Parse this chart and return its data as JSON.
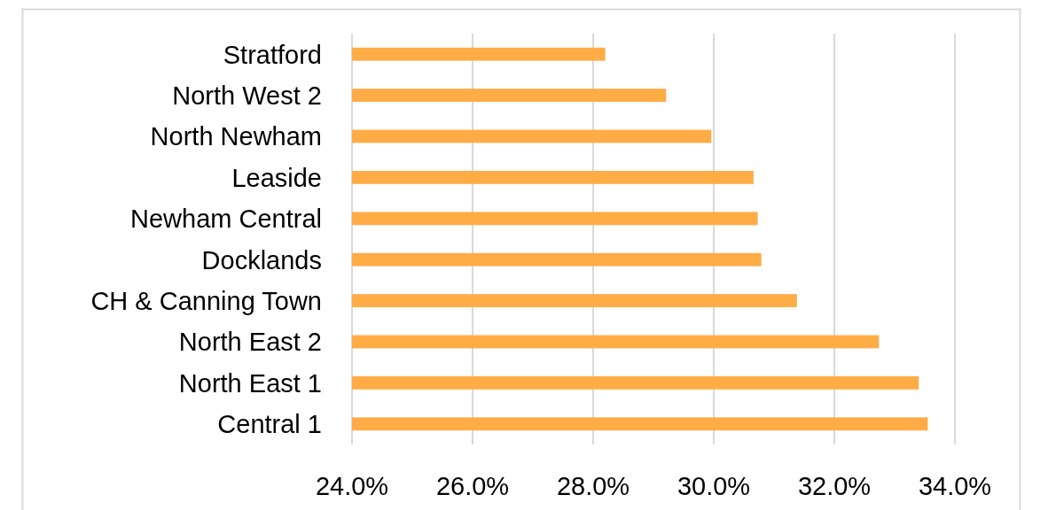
{
  "chart_data": {
    "type": "bar",
    "orientation": "horizontal",
    "categories": [
      "Stratford",
      "North West 2",
      "North Newham",
      "Leaside",
      "Newham Central",
      "Docklands",
      "CH & Canning Town",
      "North East 2",
      "North East 1",
      "Central 1"
    ],
    "values": [
      28.2,
      29.21,
      29.96,
      30.66,
      30.73,
      30.79,
      31.38,
      32.74,
      33.4,
      33.55
    ],
    "color": "#ffac47",
    "xlim": [
      24,
      34
    ],
    "xticks": [
      {
        "value": 24,
        "label": "24.0%"
      },
      {
        "value": 26,
        "label": "26.0%"
      },
      {
        "value": 28,
        "label": "28.0%"
      },
      {
        "value": 30,
        "label": "30.0%"
      },
      {
        "value": 32,
        "label": "32.0%"
      },
      {
        "value": 34,
        "label": "34.0%"
      }
    ],
    "grid": "x"
  }
}
